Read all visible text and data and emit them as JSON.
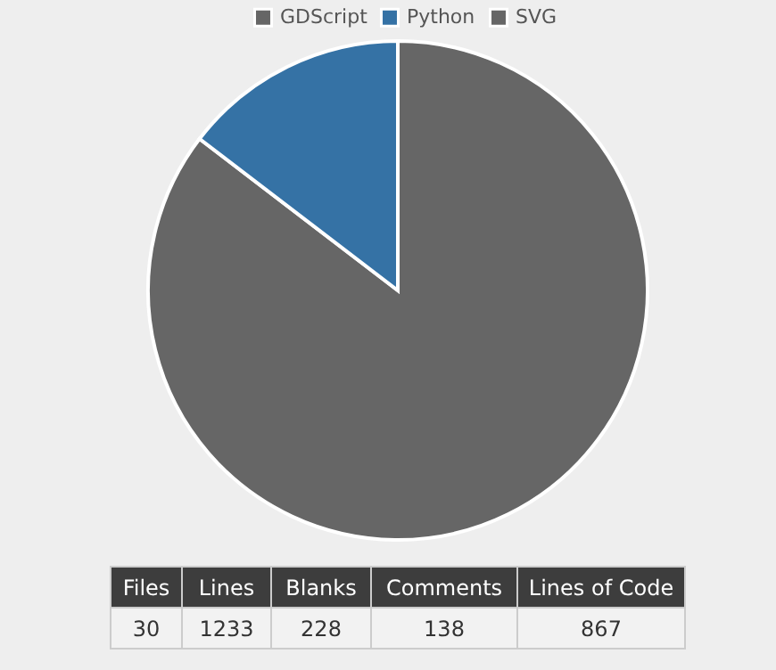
{
  "chart_data": {
    "type": "pie",
    "categories": [
      "GDScript",
      "Python",
      "SVG"
    ],
    "values": [
      85.4,
      14.6,
      0
    ],
    "colors": [
      "#666666",
      "#3572a5",
      "#666666"
    ],
    "legend": "top",
    "annotations": [
      "Files",
      "Lines",
      "Blanks",
      "Comments",
      "Lines of Code",
      "30",
      "1233",
      "228",
      "138",
      "867"
    ]
  }
}
